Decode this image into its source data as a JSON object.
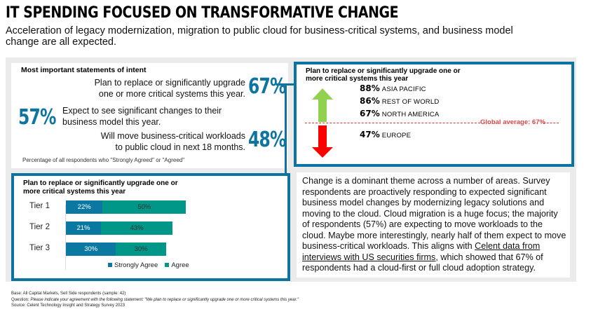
{
  "header": {
    "title": "IT SPENDING FOCUSED ON TRANSFORMATIVE CHANGE",
    "subtitle": "Acceleration of legacy modernization, migration to public cloud for business-critical systems, and business model change are all expected."
  },
  "intent": {
    "heading": "Most important statements of intent",
    "statements": [
      {
        "value": "67%",
        "line1": "Plan to replace or significantly upgrade",
        "line2": "one or more critical systems this year."
      },
      {
        "value": "57%",
        "line1": "Expect to see significant changes to their",
        "line2": "business model this year."
      },
      {
        "value": "48%",
        "line1": "Will move business-critical workloads",
        "line2": "to public cloud in next 18 months."
      }
    ],
    "note": "Percentage of all respondents who \"Strongly Agreed\" or \"Agreed\""
  },
  "regions": {
    "heading_line1": "Plan to replace or significantly upgrade one or",
    "heading_line2": "more critical systems this year",
    "items": [
      {
        "value": "88%",
        "label": "ASIA PACIFIC"
      },
      {
        "value": "86%",
        "label": "REST OF WORLD"
      },
      {
        "value": "67%",
        "label": "NORTH AMERICA"
      },
      {
        "value": "47%",
        "label": "EUROPE"
      }
    ],
    "global_average": "Global average: 67%",
    "colors": {
      "up": "#92d050",
      "down": "#ff0000",
      "avg_line": "#e04545"
    }
  },
  "chart_data": {
    "type": "bar",
    "orientation": "horizontal-stacked",
    "title": "Plan to replace or significantly upgrade one or more critical systems this year",
    "categories": [
      "Tier 1",
      "Tier 2",
      "Tier 3"
    ],
    "series": [
      {
        "name": "Strongly Agree",
        "values": [
          22,
          21,
          30
        ],
        "labels": [
          "22%",
          "21%",
          "30%"
        ],
        "color": "#0b78a2"
      },
      {
        "name": "Agree",
        "values": [
          50,
          43,
          30
        ],
        "labels": [
          "50%",
          "43%",
          "30%"
        ],
        "color": "#009688"
      }
    ],
    "xlim": [
      0,
      100
    ],
    "legend": "bottom",
    "grid": false
  },
  "commentary": {
    "before_link": "Change is a dominant theme across a number of areas. Survey respondents are proactively responding to expected significant business model changes by modernizing legacy solutions and moving to the cloud. Cloud migration is a huge focus; the majority of respondents (57%) are expecting to move workloads to the cloud. Maybe more interestingly, nearly half of them expect to move business-critical workloads. This aligns with ",
    "link_text": "Celent data from interviews with US securities firms,",
    "after_link": " which showed that 67% of respondents had a cloud-first or full cloud adoption strategy."
  },
  "footer": {
    "base": "Base: All Capital Markets, Sell Side respondents (sample: 42)",
    "question_label": "Question: ",
    "question_text": "Please indicate your agreement with the following statement: \"We plan to replace or significantly upgrade one or more critical systems this year.\"",
    "source": "Source: Celent Technology Insight and Strategy Survey 2023"
  },
  "colors": {
    "accent": "#0d73a0",
    "panel_bg": "#ebebeb"
  }
}
